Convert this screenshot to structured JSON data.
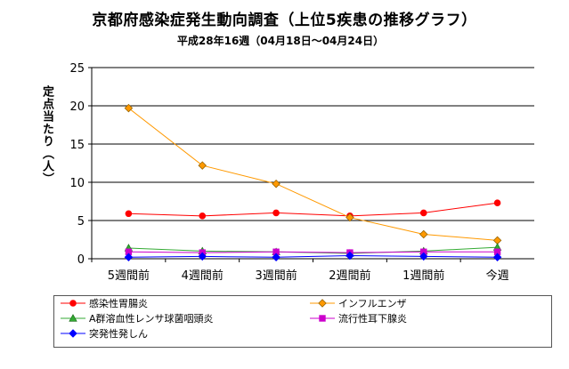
{
  "chart_data": {
    "type": "line",
    "title": "京都府感染症発生動向調査（上位5疾患の推移グラフ）",
    "subtitle": "平成28年16週（04月18日～04月24日）",
    "ylabel": "定点当たり（人）",
    "xlabel": "",
    "categories": [
      "5週間前",
      "4週間前",
      "3週間前",
      "2週間前",
      "1週間前",
      "今週"
    ],
    "ylim": [
      0,
      25
    ],
    "yticks": [
      0,
      5,
      10,
      15,
      20,
      25
    ],
    "grid": true,
    "legend_position": "bottom",
    "series": [
      {
        "name": "感染性胃腸炎",
        "color": "#ff0000",
        "marker": "circle",
        "values": [
          5.9,
          5.6,
          6.0,
          5.6,
          6.0,
          7.3
        ]
      },
      {
        "name": "インフルエンザ",
        "color": "#ff9900",
        "marker": "diamond",
        "values": [
          19.7,
          12.2,
          9.8,
          5.4,
          3.2,
          2.4
        ]
      },
      {
        "name": "A群溶血性レンサ球菌咽頭炎",
        "color": "#33aa33",
        "marker": "triangle",
        "values": [
          1.4,
          1.0,
          0.9,
          0.7,
          1.0,
          1.5
        ]
      },
      {
        "name": "流行性耳下腺炎",
        "color": "#cc00cc",
        "marker": "square",
        "values": [
          0.9,
          0.8,
          0.9,
          0.8,
          0.9,
          0.9
        ]
      },
      {
        "name": "突発性発しん",
        "color": "#0000ff",
        "marker": "diamond",
        "values": [
          0.2,
          0.3,
          0.2,
          0.4,
          0.3,
          0.2
        ]
      }
    ]
  }
}
